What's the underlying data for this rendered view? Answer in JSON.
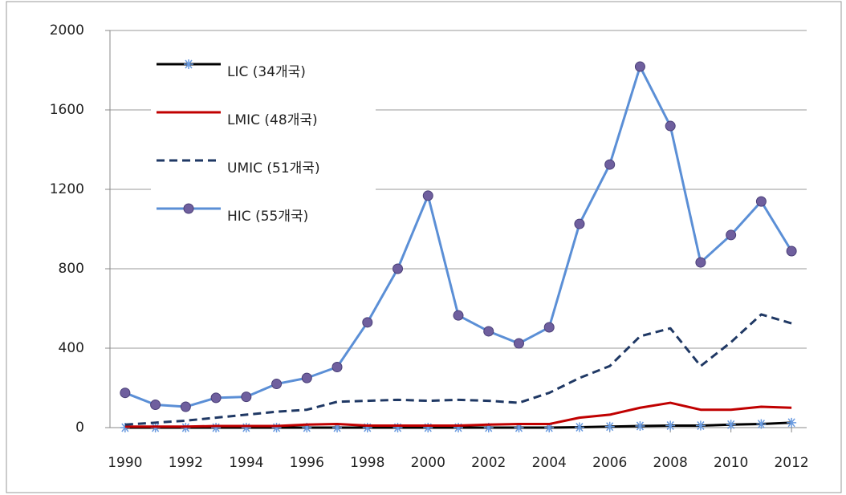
{
  "chart_data": {
    "type": "line",
    "x": [
      1990,
      1991,
      1992,
      1993,
      1994,
      1995,
      1996,
      1997,
      1998,
      1999,
      2000,
      2001,
      2002,
      2003,
      2004,
      2005,
      2006,
      2007,
      2008,
      2009,
      2010,
      2011,
      2012
    ],
    "series": [
      {
        "name": "LIC (34개국)",
        "color": "#000000",
        "marker": "asterisk",
        "marker_color": "#6a9be0",
        "values": [
          0,
          0,
          0,
          0,
          0,
          0,
          0,
          0,
          0,
          0,
          0,
          0,
          0,
          0,
          0,
          2,
          5,
          8,
          10,
          10,
          15,
          18,
          25
        ]
      },
      {
        "name": "LMIC (48개국)",
        "color": "#c00000",
        "values": [
          5,
          5,
          5,
          8,
          8,
          8,
          15,
          18,
          10,
          10,
          10,
          10,
          15,
          18,
          18,
          50,
          65,
          100,
          125,
          90,
          90,
          105,
          100
        ]
      },
      {
        "name": "UMIC (51개국)",
        "color": "#1f3864",
        "dash": true,
        "values": [
          15,
          25,
          35,
          50,
          65,
          80,
          90,
          130,
          135,
          140,
          135,
          140,
          135,
          125,
          175,
          250,
          310,
          460,
          500,
          310,
          430,
          570,
          525
        ]
      },
      {
        "name": "HIC (55개국)",
        "color": "#5b8fd6",
        "marker": "circle",
        "marker_color": "#6f5f9e",
        "values": [
          175,
          115,
          105,
          150,
          155,
          220,
          250,
          305,
          530,
          800,
          1168,
          565,
          485,
          424,
          505,
          1026,
          1325,
          1818,
          1519,
          832,
          970,
          1139,
          889
        ]
      }
    ],
    "xlim": [
      1989.5,
      2012.5
    ],
    "xticks": [
      1990,
      1992,
      1994,
      1996,
      1998,
      2000,
      2002,
      2004,
      2006,
      2008,
      2010,
      2012
    ],
    "ylim": [
      0,
      2000
    ],
    "yticks": [
      0,
      400,
      800,
      1200,
      1600,
      2000
    ],
    "grid": true
  }
}
